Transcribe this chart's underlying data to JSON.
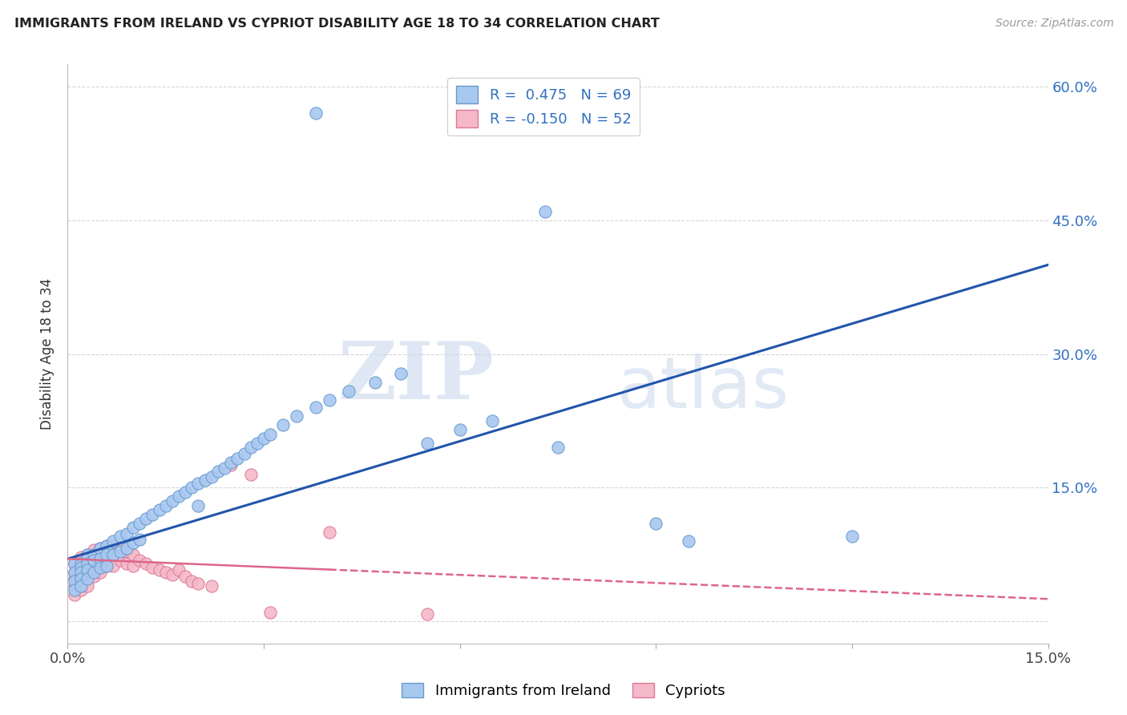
{
  "title": "IMMIGRANTS FROM IRELAND VS CYPRIOT DISABILITY AGE 18 TO 34 CORRELATION CHART",
  "source": "Source: ZipAtlas.com",
  "ylabel": "Disability Age 18 to 34",
  "xmin": 0.0,
  "xmax": 0.15,
  "ymin": -0.025,
  "ymax": 0.625,
  "xtick_positions": [
    0.0,
    0.03,
    0.06,
    0.09,
    0.12,
    0.15
  ],
  "xtick_labels": [
    "0.0%",
    "",
    "",
    "",
    "",
    "15.0%"
  ],
  "ytick_positions": [
    0.0,
    0.15,
    0.3,
    0.45,
    0.6
  ],
  "ytick_labels_right": [
    "",
    "15.0%",
    "30.0%",
    "45.0%",
    "60.0%"
  ],
  "ireland_color": "#A8C8F0",
  "ireland_edge_color": "#6699CC",
  "cypriot_color": "#F5B8C8",
  "cypriot_edge_color": "#DD7799",
  "ireland_R": 0.475,
  "ireland_N": 69,
  "cypriot_R": -0.15,
  "cypriot_N": 52,
  "ireland_line_color": "#2255AA",
  "cypriot_line_color": "#DD6688",
  "watermark_zip": "ZIP",
  "watermark_atlas": "atlas",
  "ireland_line_x0": 0.0,
  "ireland_line_y0": 0.07,
  "ireland_line_x1": 0.15,
  "ireland_line_y1": 0.4,
  "cypriot_line_x0": 0.0,
  "cypriot_line_y0": 0.07,
  "cypriot_line_x1": 0.15,
  "cypriot_line_y1": 0.025,
  "ireland_x": [
    0.001,
    0.001,
    0.001,
    0.001,
    0.002,
    0.002,
    0.002,
    0.002,
    0.002,
    0.003,
    0.003,
    0.003,
    0.003,
    0.004,
    0.004,
    0.004,
    0.005,
    0.005,
    0.005,
    0.006,
    0.006,
    0.006,
    0.007,
    0.007,
    0.008,
    0.008,
    0.009,
    0.009,
    0.01,
    0.01,
    0.011,
    0.011,
    0.012,
    0.013,
    0.014,
    0.015,
    0.016,
    0.017,
    0.018,
    0.019,
    0.02,
    0.02,
    0.021,
    0.022,
    0.023,
    0.024,
    0.025,
    0.026,
    0.027,
    0.028,
    0.029,
    0.03,
    0.031,
    0.033,
    0.035,
    0.038,
    0.04,
    0.043,
    0.047,
    0.051,
    0.055,
    0.06,
    0.065,
    0.075,
    0.09,
    0.095,
    0.12,
    0.038,
    0.073
  ],
  "ireland_y": [
    0.065,
    0.055,
    0.045,
    0.035,
    0.065,
    0.06,
    0.055,
    0.048,
    0.04,
    0.075,
    0.065,
    0.058,
    0.048,
    0.075,
    0.068,
    0.055,
    0.082,
    0.07,
    0.06,
    0.085,
    0.075,
    0.062,
    0.09,
    0.075,
    0.095,
    0.078,
    0.098,
    0.082,
    0.105,
    0.088,
    0.11,
    0.092,
    0.115,
    0.12,
    0.125,
    0.13,
    0.135,
    0.14,
    0.145,
    0.15,
    0.155,
    0.13,
    0.158,
    0.162,
    0.168,
    0.172,
    0.178,
    0.183,
    0.188,
    0.195,
    0.2,
    0.205,
    0.21,
    0.22,
    0.23,
    0.24,
    0.248,
    0.258,
    0.268,
    0.278,
    0.2,
    0.215,
    0.225,
    0.195,
    0.11,
    0.09,
    0.095,
    0.57,
    0.46
  ],
  "cypriot_x": [
    0.001,
    0.001,
    0.001,
    0.001,
    0.001,
    0.002,
    0.002,
    0.002,
    0.002,
    0.002,
    0.002,
    0.003,
    0.003,
    0.003,
    0.003,
    0.003,
    0.004,
    0.004,
    0.004,
    0.004,
    0.005,
    0.005,
    0.005,
    0.005,
    0.006,
    0.006,
    0.006,
    0.007,
    0.007,
    0.007,
    0.008,
    0.008,
    0.009,
    0.009,
    0.01,
    0.01,
    0.011,
    0.012,
    0.013,
    0.014,
    0.015,
    0.016,
    0.017,
    0.018,
    0.019,
    0.02,
    0.022,
    0.025,
    0.028,
    0.031,
    0.04,
    0.055
  ],
  "cypriot_y": [
    0.065,
    0.055,
    0.048,
    0.04,
    0.03,
    0.072,
    0.065,
    0.058,
    0.05,
    0.042,
    0.035,
    0.075,
    0.068,
    0.06,
    0.052,
    0.04,
    0.08,
    0.072,
    0.062,
    0.05,
    0.082,
    0.074,
    0.065,
    0.055,
    0.085,
    0.075,
    0.062,
    0.085,
    0.075,
    0.062,
    0.082,
    0.068,
    0.078,
    0.065,
    0.075,
    0.062,
    0.068,
    0.065,
    0.06,
    0.058,
    0.055,
    0.052,
    0.058,
    0.05,
    0.045,
    0.042,
    0.04,
    0.175,
    0.165,
    0.01,
    0.1,
    0.008
  ]
}
